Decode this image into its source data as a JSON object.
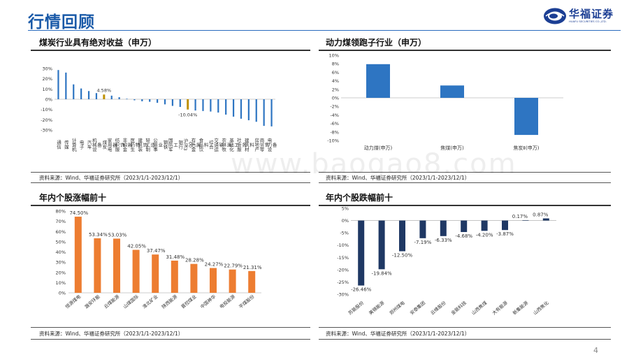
{
  "header": {
    "title": "行情回顾"
  },
  "logo": {
    "cn": "华福证券",
    "en": "HUAFU SECURITIES CO.,LTD."
  },
  "colors": {
    "blue": "#2e75c2",
    "gold": "#bf9000",
    "orange": "#ed7d31",
    "navy": "#1f3864",
    "brand": "#1a5aa8"
  },
  "panels": {
    "industry": {
      "title": "煤炭行业具有绝对收益（申万）",
      "source": "资料来源：Wind、华福证券研究所（2023/1/1-2023/12/1）"
    },
    "subindustry": {
      "title": "动力煤领跑子行业（申万）",
      "source": "资料来源：Wind、华福证券研究所（2023/1/1-2023/12/1）"
    },
    "gainers": {
      "title": "年内个股涨幅前十",
      "source": "资料来源：Wind、华福证券研究所（2023/1/1-2023/12/1）"
    },
    "losers": {
      "title": "年内个股跌幅前十",
      "source": "资料来源：Wind、华福证券研究所（2023/1/1-2023/12/1）"
    }
  },
  "watermark": "www.baogao8.com",
  "page_number": "4",
  "chart_data": [
    {
      "type": "bar",
      "categories": [
        "通信",
        "传媒",
        "计算机",
        "电子",
        "汽车",
        "机械设备",
        "煤炭",
        "家用电器",
        "纺织服饰",
        "非银金融",
        "医药生物",
        "建筑装饰",
        "轻工制造",
        "公用事业",
        "钢铁",
        "国防军工",
        "银行",
        "沪深300",
        "有色金属",
        "食品饮料",
        "综合",
        "交通运输",
        "农林牧渔",
        "基础化工",
        "社会服务",
        "建筑材料",
        "房地产",
        "商贸零售",
        "电力设备"
      ],
      "values": [
        28.5,
        26.0,
        14.5,
        10.5,
        8.0,
        6.0,
        4.58,
        3.5,
        2.0,
        0.5,
        -1.0,
        -2.0,
        -2.5,
        -3.5,
        -5.0,
        -6.5,
        -7.5,
        -10.04,
        -11.0,
        -11.5,
        -12.0,
        -13.0,
        -15.0,
        -17.0,
        -19.0,
        -20.5,
        -22.0,
        -26.0,
        -26.5
      ],
      "highlight": {
        "煤炭": "4.58%",
        "沪深300": "-10.04%"
      },
      "ylim": [
        -30,
        30
      ],
      "yticks": [
        "30%",
        "20%",
        "10%",
        "0%",
        "-10%",
        "-20%",
        "-30%"
      ],
      "grid": false
    },
    {
      "type": "bar",
      "categories": [
        "动力煤(申万)",
        "焦煤(申万)",
        "焦炭Ⅱ(申万)"
      ],
      "values": [
        7.9,
        2.9,
        -8.7
      ],
      "ylim": [
        -10,
        10
      ],
      "yticks": [
        "10%",
        "8%",
        "6%",
        "4%",
        "2%",
        "0%",
        "-2%",
        "-4%",
        "-6%",
        "-8%",
        "-10%"
      ],
      "grid": false
    },
    {
      "type": "bar",
      "categories": [
        "恒源煤电",
        "潞安环能",
        "云煤能源",
        "山煤国际",
        "淮北矿业",
        "陕西能源",
        "晋控煤业",
        "中国神华",
        "电投能源",
        "平煤股份"
      ],
      "values": [
        74.5,
        53.34,
        53.03,
        42.05,
        37.47,
        31.48,
        28.28,
        24.27,
        22.79,
        21.31
      ],
      "labels": [
        "74.50%",
        "53.34%",
        "53.03%",
        "42.05%",
        "37.47%",
        "31.48%",
        "28.28%",
        "24.27%",
        "22.79%",
        "21.31%"
      ],
      "ylim": [
        0,
        80
      ],
      "yticks": [
        "80%",
        "70%",
        "60%",
        "50%",
        "40%",
        "30%",
        "20%",
        "10%",
        "0%"
      ],
      "grid": false
    },
    {
      "type": "bar",
      "categories": [
        "苏能股份",
        "美锦能源",
        "郑州煤电",
        "安泰集团",
        "云维股份",
        "金能科技",
        "山西焦煤",
        "大有能源",
        "新集能源",
        "山西焦化"
      ],
      "values": [
        -26.46,
        -19.84,
        -12.5,
        -7.19,
        -6.33,
        -4.68,
        -4.2,
        -3.87,
        0.17,
        0.87
      ],
      "labels": [
        "-26.46%",
        "-19.84%",
        "-12.50%",
        "-7.19%",
        "-6.33%",
        "-4.68%",
        "-4.20%",
        "-3.87%",
        "0.17%",
        "0.87%"
      ],
      "ylim": [
        -30,
        5
      ],
      "yticks": [
        "5%",
        "0%",
        "-5%",
        "-10%",
        "-15%",
        "-20%",
        "-25%",
        "-30%"
      ],
      "grid": false
    }
  ]
}
